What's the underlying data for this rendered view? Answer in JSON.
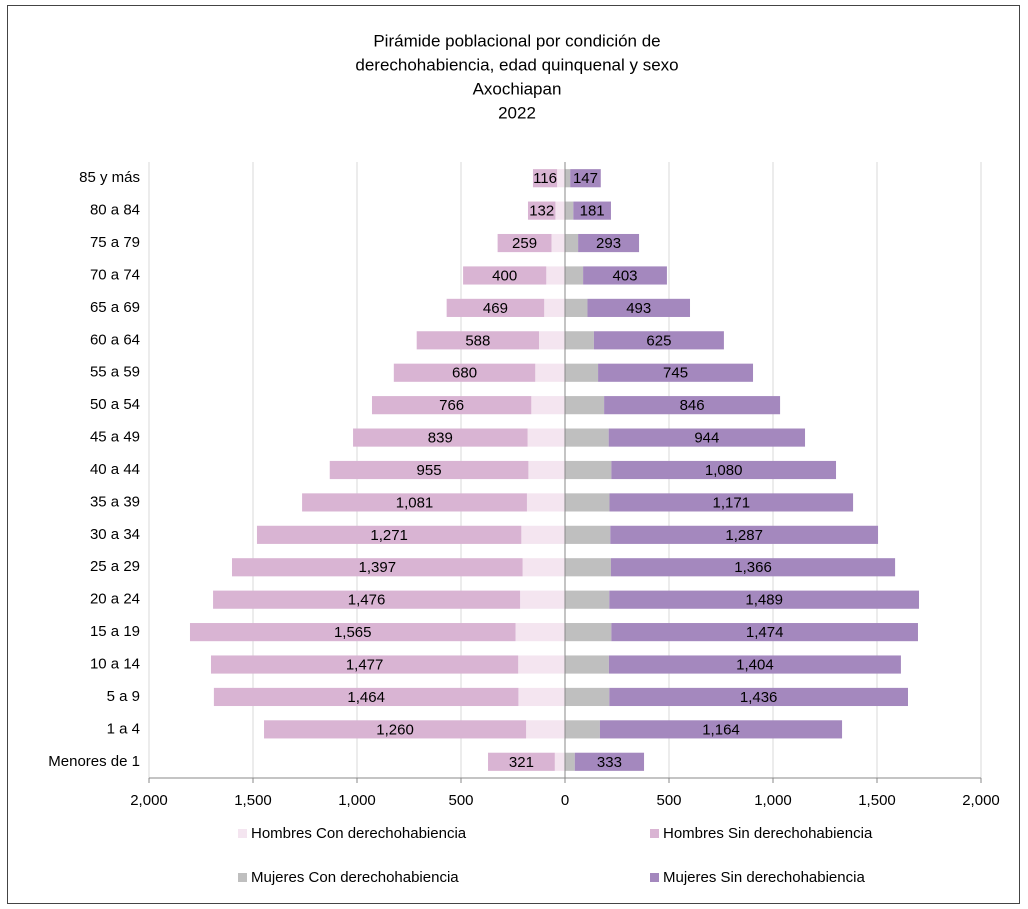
{
  "chart_data": {
    "type": "pyramid",
    "title": [
      "Pirámide poblacional por condición de",
      "derechohabiencia, edad quinquenal y sexo"
    ],
    "subtitle": [
      "Axochiapan",
      "2022"
    ],
    "categories": [
      "85 y más",
      "80 a 84",
      "75 a 79",
      "70 a 74",
      "65 a 69",
      "60 a 64",
      "55 a 59",
      "50 a 54",
      "45 a 49",
      "40 a 44",
      "35 a 39",
      "30 a 34",
      "25 a 29",
      "20 a 24",
      "15 a 19",
      "10 a 14",
      "5 a 9",
      "1 a 4",
      "Menores de 1"
    ],
    "series": [
      {
        "name": "Hombres Con derechohabiencia",
        "color": "#f4e5f0",
        "values": [
          -38,
          -46,
          -65,
          -90,
          -100,
          -125,
          -143,
          -162,
          -180,
          -176,
          -183,
          -210,
          -204,
          -216,
          -238,
          -225,
          -224,
          -187,
          -49
        ]
      },
      {
        "name": "Hombres Sin derechohabiencia",
        "color": "#d9b4d3",
        "values": [
          -116,
          -132,
          -259,
          -400,
          -469,
          -588,
          -680,
          -766,
          -839,
          -955,
          -1081,
          -1271,
          -1397,
          -1476,
          -1565,
          -1477,
          -1464,
          -1260,
          -321
        ],
        "value_labels": [
          "116",
          "132",
          "259",
          "400",
          "469",
          "588",
          "680",
          "766",
          "839",
          "955",
          "1,081",
          "1,271",
          "1,397",
          "1,476",
          "1,565",
          "1,477",
          "1,464",
          "1,260",
          "321"
        ]
      },
      {
        "name": "Mujeres Con derechohabiencia",
        "color": "#bfbfbf",
        "values": [
          25,
          40,
          63,
          87,
          108,
          139,
          159,
          188,
          210,
          223,
          214,
          218,
          221,
          213,
          223,
          211,
          213,
          168,
          47
        ]
      },
      {
        "name": "Mujeres Sin derechohabiencia",
        "color": "#a488be",
        "values": [
          147,
          181,
          293,
          403,
          493,
          625,
          745,
          846,
          944,
          1080,
          1171,
          1287,
          1366,
          1489,
          1474,
          1404,
          1436,
          1164,
          333
        ],
        "value_labels": [
          "147",
          "181",
          "293",
          "403",
          "493",
          "625",
          "745",
          "846",
          "944",
          "1,080",
          "1,171",
          "1,287",
          "1,366",
          "1,489",
          "1,474",
          "1,404",
          "1,436",
          "1,164",
          "333"
        ]
      }
    ],
    "xlim": [
      -2000,
      2000
    ],
    "xticks": [
      {
        "value": -2000,
        "label": "2,000"
      },
      {
        "value": -1500,
        "label": "1,500"
      },
      {
        "value": -1000,
        "label": "1,000"
      },
      {
        "value": -500,
        "label": "500"
      },
      0,
      500,
      {
        "value": 1000,
        "label": "1,000"
      },
      {
        "value": 1500,
        "label": "1,500"
      },
      {
        "value": 2000,
        "label": "2,000"
      }
    ],
    "grid": true,
    "legend": "bottom"
  }
}
